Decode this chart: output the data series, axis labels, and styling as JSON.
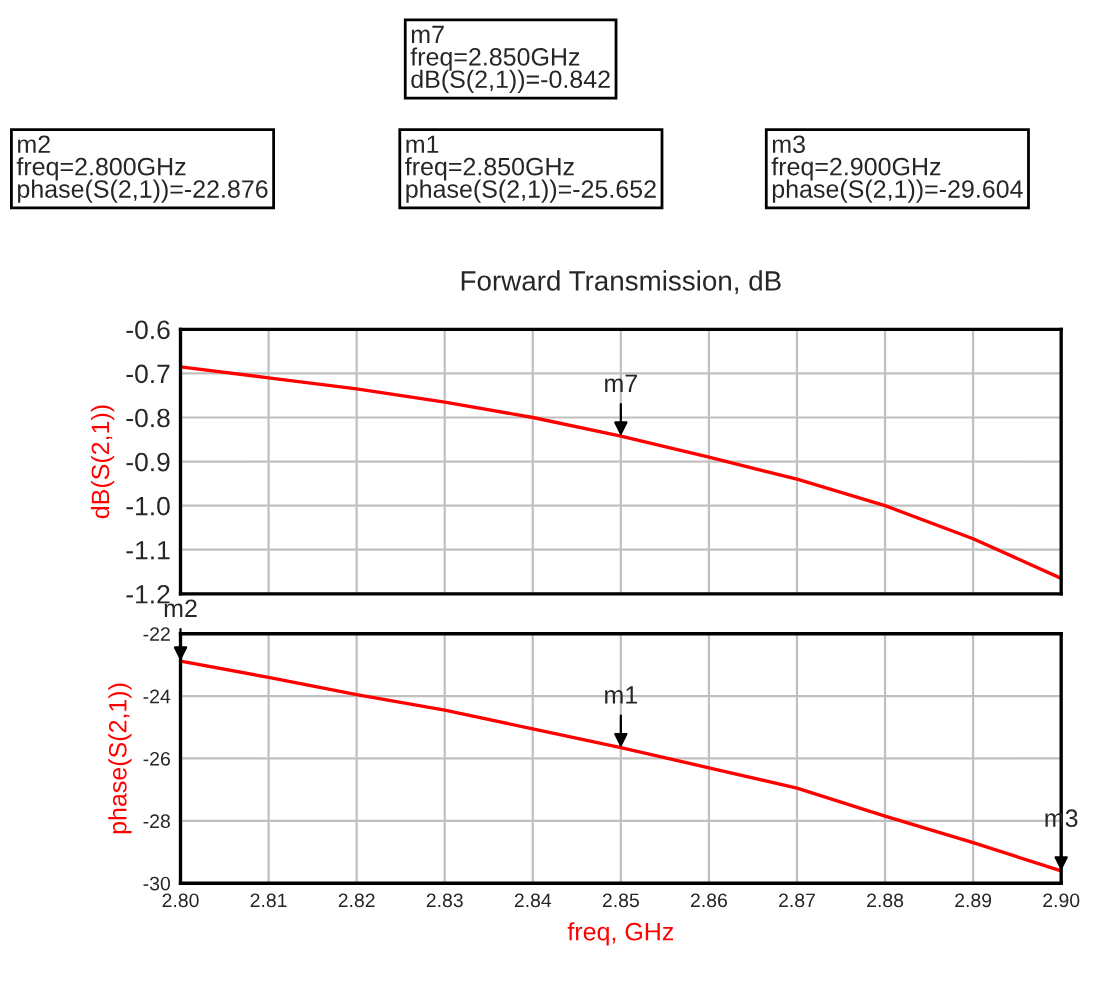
{
  "chart_data": [
    {
      "type": "line",
      "title": "Forward Transmission, dB",
      "ylabel": "dB(S(2,1))",
      "x": [
        2.8,
        2.81,
        2.82,
        2.83,
        2.84,
        2.85,
        2.86,
        2.87,
        2.88,
        2.89,
        2.9
      ],
      "series": [
        {
          "color": "#ff0000",
          "values": [
            -0.685,
            -0.71,
            -0.735,
            -0.765,
            -0.8,
            -0.842,
            -0.89,
            -0.94,
            -1.0,
            -1.075,
            -1.165
          ]
        }
      ],
      "xlim": [
        2.8,
        2.9
      ],
      "xticks": [
        2.8,
        2.81,
        2.82,
        2.83,
        2.84,
        2.85,
        2.86,
        2.87,
        2.88,
        2.89,
        2.9
      ],
      "ylim": [
        -1.2,
        -0.6
      ],
      "yticks": [
        -1.2,
        -1.1,
        {
          "value": -1.0,
          "label": "-1.0"
        },
        -0.9,
        -0.8,
        -0.7,
        -0.6
      ],
      "tick_labels": "y",
      "grid": true,
      "annotations": [
        {
          "text": "m7",
          "x": 2.85,
          "y": -0.842
        },
        "m7\nfreq=2.850GHz\ndB(S(2,1))=-0.842"
      ]
    },
    {
      "type": "line",
      "xlabel": "freq, GHz",
      "ylabel": "phase(S(2,1))",
      "x": [
        2.8,
        2.81,
        2.82,
        2.83,
        2.84,
        2.85,
        2.86,
        2.87,
        2.88,
        2.89,
        2.9
      ],
      "series": [
        {
          "color": "#ff0000",
          "values": [
            -22.876,
            -23.4,
            -23.95,
            -24.45,
            -25.05,
            -25.652,
            -26.3,
            -26.95,
            -27.85,
            -28.7,
            -29.604
          ]
        }
      ],
      "xlim": [
        2.8,
        2.9
      ],
      "xticks": [
        {
          "value": 2.8,
          "label": "2.80"
        },
        {
          "value": 2.81,
          "label": "2.81"
        },
        {
          "value": 2.82,
          "label": "2.82"
        },
        {
          "value": 2.83,
          "label": "2.83"
        },
        {
          "value": 2.84,
          "label": "2.84"
        },
        {
          "value": 2.85,
          "label": "2.85"
        },
        {
          "value": 2.86,
          "label": "2.86"
        },
        {
          "value": 2.87,
          "label": "2.87"
        },
        {
          "value": 2.88,
          "label": "2.88"
        },
        {
          "value": 2.89,
          "label": "2.89"
        },
        {
          "value": 2.9,
          "label": "2.90"
        }
      ],
      "ylim": [
        -30,
        -22
      ],
      "yticks": [
        -30,
        -28,
        -26,
        -24,
        -22
      ],
      "grid": true,
      "annotations": [
        {
          "text": "m2",
          "x": 2.8,
          "y": -22.876
        },
        {
          "text": "m1",
          "x": 2.85,
          "y": -25.652
        },
        {
          "text": "m3",
          "x": 2.9,
          "y": -29.604
        },
        "m2\nfreq=2.800GHz\nphase(S(2,1))=-22.876",
        "m1\nfreq=2.850GHz\nphase(S(2,1))=-25.652",
        "m3\nfreq=2.900GHz\nphase(S(2,1))=-29.604"
      ]
    }
  ]
}
